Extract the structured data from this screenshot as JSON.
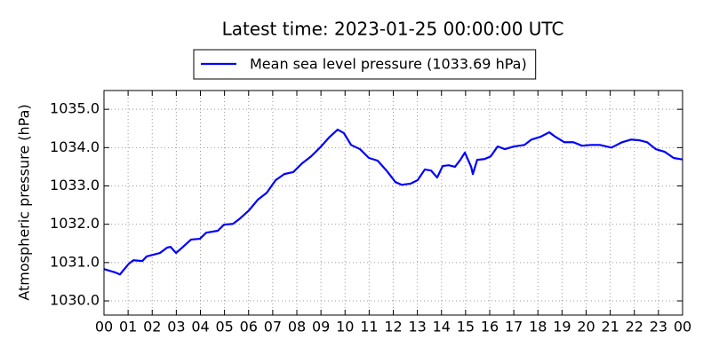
{
  "chart_data": {
    "type": "line",
    "title": "Latest time: 2023-01-25 00:00:00 UTC",
    "ylabel": "Atmospheric pressure (hPa)",
    "legend": "top",
    "grid": true,
    "xlim": [
      0,
      24
    ],
    "xticks": [
      {
        "value": 0,
        "label": "00"
      },
      {
        "value": 1,
        "label": "01"
      },
      {
        "value": 2,
        "label": "02"
      },
      {
        "value": 3,
        "label": "03"
      },
      {
        "value": 4,
        "label": "04"
      },
      {
        "value": 5,
        "label": "05"
      },
      {
        "value": 6,
        "label": "06"
      },
      {
        "value": 7,
        "label": "07"
      },
      {
        "value": 8,
        "label": "08"
      },
      {
        "value": 9,
        "label": "09"
      },
      {
        "value": 10,
        "label": "10"
      },
      {
        "value": 11,
        "label": "11"
      },
      {
        "value": 12,
        "label": "12"
      },
      {
        "value": 13,
        "label": "13"
      },
      {
        "value": 14,
        "label": "14"
      },
      {
        "value": 15,
        "label": "15"
      },
      {
        "value": 16,
        "label": "16"
      },
      {
        "value": 17,
        "label": "17"
      },
      {
        "value": 18,
        "label": "18"
      },
      {
        "value": 19,
        "label": "19"
      },
      {
        "value": 20,
        "label": "20"
      },
      {
        "value": 21,
        "label": "21"
      },
      {
        "value": 22,
        "label": "22"
      },
      {
        "value": 23,
        "label": "23"
      },
      {
        "value": 24,
        "label": "00"
      }
    ],
    "ylim": [
      1029.63,
      1035.49
    ],
    "yticks": [
      {
        "value": 1030,
        "label": "1030.0"
      },
      {
        "value": 1031,
        "label": "1031.0"
      },
      {
        "value": 1032,
        "label": "1032.0"
      },
      {
        "value": 1033,
        "label": "1033.0"
      },
      {
        "value": 1034,
        "label": "1034.0"
      },
      {
        "value": 1035,
        "label": "1035.0"
      }
    ],
    "x": [
      0,
      0.48,
      0.66,
      1.03,
      1.22,
      1.59,
      1.77,
      2.32,
      2.62,
      2.76,
      2.99,
      3.24,
      3.61,
      3.98,
      4.24,
      4.72,
      4.98,
      5.35,
      5.64,
      6.01,
      6.38,
      6.75,
      7.12,
      7.48,
      7.85,
      8.22,
      8.59,
      8.96,
      9.33,
      9.69,
      9.95,
      10.25,
      10.62,
      10.99,
      11.35,
      11.72,
      12.09,
      12.35,
      12.72,
      13.01,
      13.31,
      13.57,
      13.82,
      14.05,
      14.3,
      14.56,
      14.78,
      14.97,
      15.23,
      15.3,
      15.48,
      15.78,
      16.04,
      16.33,
      16.63,
      17.0,
      17.44,
      17.73,
      18.1,
      18.47,
      18.73,
      19.1,
      19.47,
      19.83,
      20.2,
      20.57,
      21.05,
      21.49,
      21.86,
      22.23,
      22.53,
      22.89,
      23.26,
      23.63,
      24
    ],
    "series": [
      {
        "name": "Mean sea level pressure (1033.69 hPa)",
        "color": "#0000ff",
        "values": [
          1030.83,
          1030.74,
          1030.69,
          1030.97,
          1031.06,
          1031.04,
          1031.16,
          1031.25,
          1031.39,
          1031.41,
          1031.25,
          1031.39,
          1031.6,
          1031.62,
          1031.78,
          1031.83,
          1031.99,
          1032.01,
          1032.15,
          1032.36,
          1032.64,
          1032.82,
          1033.15,
          1033.31,
          1033.36,
          1033.59,
          1033.77,
          1034.0,
          1034.26,
          1034.47,
          1034.38,
          1034.07,
          1033.96,
          1033.73,
          1033.66,
          1033.4,
          1033.1,
          1033.03,
          1033.06,
          1033.15,
          1033.43,
          1033.4,
          1033.22,
          1033.52,
          1033.54,
          1033.5,
          1033.68,
          1033.87,
          1033.5,
          1033.31,
          1033.68,
          1033.7,
          1033.77,
          1034.03,
          1033.96,
          1034.03,
          1034.07,
          1034.21,
          1034.28,
          1034.4,
          1034.28,
          1034.14,
          1034.14,
          1034.05,
          1034.07,
          1034.07,
          1034.0,
          1034.14,
          1034.21,
          1034.19,
          1034.14,
          1033.96,
          1033.89,
          1033.73,
          1033.69
        ]
      }
    ]
  }
}
